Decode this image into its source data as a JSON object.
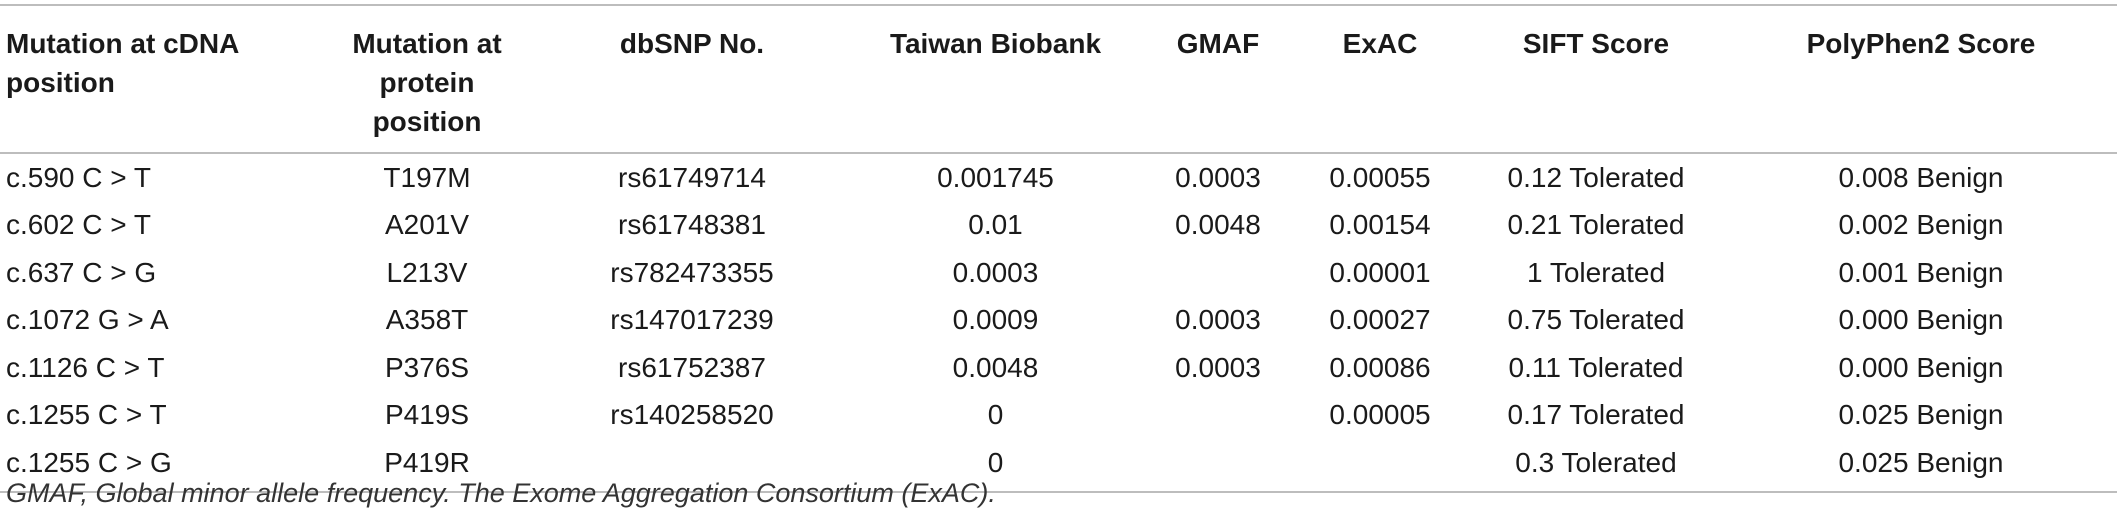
{
  "table": {
    "headers": [
      "Mutation at cDNA position",
      "Mutation at protein position",
      "dbSNP No.",
      "Taiwan Biobank",
      "GMAF",
      "ExAC",
      "SIFT Score",
      "PolyPhen2 Score"
    ],
    "rows": [
      [
        "c.590 C > T",
        "T197M",
        "rs61749714",
        "0.001745",
        "0.0003",
        "0.00055",
        "0.12 Tolerated",
        "0.008 Benign"
      ],
      [
        "c.602 C > T",
        "A201V",
        "rs61748381",
        "0.01",
        "0.0048",
        "0.00154",
        "0.21 Tolerated",
        "0.002 Benign"
      ],
      [
        "c.637 C > G",
        "L213V",
        "rs782473355",
        "0.0003",
        "",
        "0.00001",
        "1 Tolerated",
        "0.001 Benign"
      ],
      [
        "c.1072 G > A",
        "A358T",
        "rs147017239",
        "0.0009",
        "0.0003",
        "0.00027",
        "0.75 Tolerated",
        "0.000 Benign"
      ],
      [
        "c.1126 C > T",
        "P376S",
        "rs61752387",
        "0.0048",
        "0.0003",
        "0.00086",
        "0.11 Tolerated",
        "0.000 Benign"
      ],
      [
        "c.1255 C > T",
        "P419S",
        "rs140258520",
        "0",
        "",
        "0.00005",
        "0.17 Tolerated",
        "0.025 Benign"
      ],
      [
        "c.1255 C > G",
        "P419R",
        "",
        "0",
        "",
        "",
        "0.3 Tolerated",
        "0.025 Benign"
      ]
    ]
  },
  "footnote": "GMAF, Global minor allele frequency. The Exome Aggregation Consortium (ExAC)."
}
